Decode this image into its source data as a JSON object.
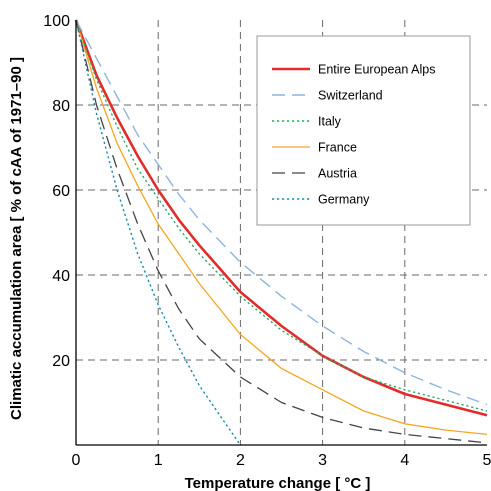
{
  "chart_data": {
    "type": "line",
    "xlabel": "Temperature change [ °C ]",
    "ylabel": "Climatic accumulation area [ % of cAA of 1971–90 ]",
    "xlim": [
      0,
      5
    ],
    "ylim": [
      0,
      100
    ],
    "xticks": [
      "0",
      "1",
      "2",
      "3",
      "4",
      "5"
    ],
    "yticks": [
      "20",
      "40",
      "60",
      "80",
      "100"
    ],
    "grid": true,
    "legend_position": "top-right",
    "series": [
      {
        "name": "Entire European Alps",
        "color": "#e32b2b",
        "dash": "solid",
        "width": 2.6,
        "x": [
          0,
          0.25,
          0.5,
          0.75,
          1,
          1.25,
          1.5,
          2,
          2.5,
          3,
          3.5,
          4,
          4.5,
          5
        ],
        "y": [
          100,
          87,
          77,
          68,
          60,
          53,
          47,
          36,
          28,
          21,
          16,
          12,
          9.5,
          7
        ]
      },
      {
        "name": "Switzerland",
        "color": "#8fb4df",
        "dash": "long-dash",
        "width": 1.4,
        "x": [
          0,
          0.25,
          0.5,
          0.75,
          1,
          1.25,
          1.5,
          2,
          2.5,
          3,
          3.5,
          4,
          4.5,
          5
        ],
        "y": [
          100,
          91,
          82,
          73,
          66,
          59,
          53,
          43,
          35,
          28,
          22,
          17,
          13,
          9.5
        ]
      },
      {
        "name": "Italy",
        "color": "#2aa866",
        "dash": "dotted",
        "width": 1.4,
        "x": [
          0,
          0.25,
          0.5,
          0.75,
          1,
          1.25,
          1.5,
          2,
          2.5,
          3,
          3.5,
          4,
          4.5,
          5
        ],
        "y": [
          100,
          86,
          75,
          65,
          58,
          51,
          45,
          35,
          27,
          21,
          16,
          13,
          10.5,
          8
        ]
      },
      {
        "name": "France",
        "color": "#f5a623",
        "dash": "solid",
        "width": 1.3,
        "x": [
          0,
          0.25,
          0.5,
          0.75,
          1,
          1.25,
          1.5,
          2,
          2.5,
          3,
          3.5,
          4,
          4.5,
          5
        ],
        "y": [
          100,
          84,
          71,
          61,
          52,
          45,
          38,
          26,
          18,
          13,
          8,
          5,
          3.5,
          2.5
        ]
      },
      {
        "name": "Austria",
        "color": "#444444",
        "dash": "long-dash",
        "width": 1.3,
        "x": [
          0,
          0.25,
          0.5,
          0.75,
          1,
          1.25,
          1.5,
          2,
          2.5,
          3,
          3.5,
          4,
          4.5,
          5
        ],
        "y": [
          100,
          80,
          65,
          52,
          41,
          32,
          25,
          16,
          10,
          6.5,
          4,
          2.5,
          1.5,
          0.5
        ]
      },
      {
        "name": "Germany",
        "color": "#1a88b5",
        "dash": "dotted",
        "width": 1.4,
        "x": [
          0,
          0.25,
          0.5,
          0.75,
          1,
          1.25,
          1.5,
          1.75,
          2
        ],
        "y": [
          100,
          78,
          60,
          45,
          33,
          23,
          14,
          7,
          0
        ]
      }
    ]
  }
}
